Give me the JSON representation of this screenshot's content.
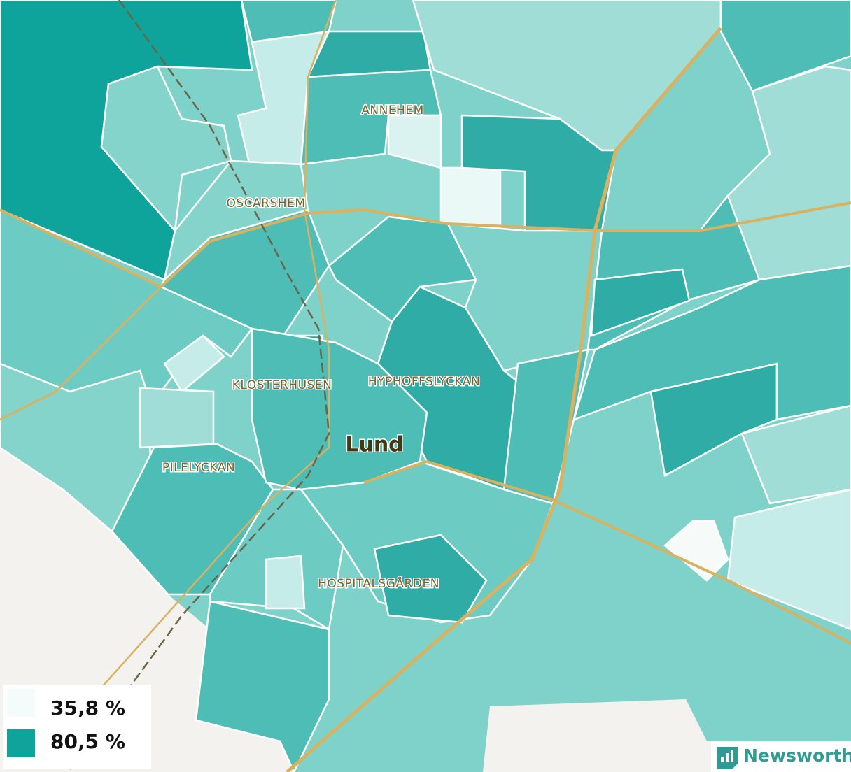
{
  "map": {
    "place_labels": [
      "ANNEHEM",
      "OSCARSHEM",
      "KLOSTERHUSEN",
      "HYPHOFFSLYCKAN",
      "PILELYCKAN",
      "HOSPITALSGÅRDEN"
    ],
    "city_label": "Lund",
    "legend": {
      "items": [
        {
          "label": "35,8 %",
          "color": "#f4fcfb"
        },
        {
          "label": "80,5 %",
          "color": "#0ea39b"
        }
      ]
    },
    "brand": "Newsworthy"
  }
}
